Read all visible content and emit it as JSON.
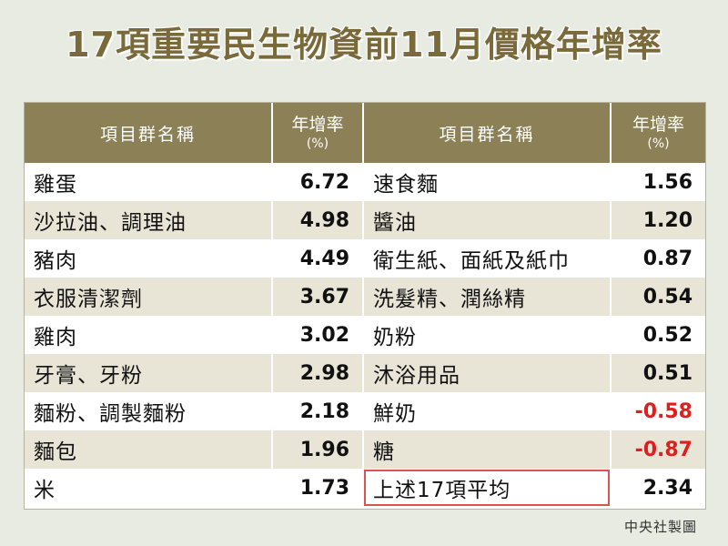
{
  "title": "17項重要民生物資前11月價格年增率",
  "table": {
    "header": {
      "name_label": "項目群名稱",
      "rate_label": "年增率",
      "rate_unit": "(%)"
    },
    "left": [
      {
        "name": "雞蛋",
        "rate": "6.72"
      },
      {
        "name": "沙拉油、調理油",
        "rate": "4.98"
      },
      {
        "name": "豬肉",
        "rate": "4.49"
      },
      {
        "name": "衣服清潔劑",
        "rate": "3.67"
      },
      {
        "name": "雞肉",
        "rate": "3.02"
      },
      {
        "name": "牙膏、牙粉",
        "rate": "2.98"
      },
      {
        "name": "麵粉、調製麵粉",
        "rate": "2.18"
      },
      {
        "name": "麵包",
        "rate": "1.96"
      },
      {
        "name": "米",
        "rate": "1.73"
      }
    ],
    "right": [
      {
        "name": "速食麵",
        "rate": "1.56"
      },
      {
        "name": "醬油",
        "rate": "1.20"
      },
      {
        "name": "衛生紙、面紙及紙巾",
        "rate": "0.87"
      },
      {
        "name": "洗髮精、潤絲精",
        "rate": "0.54"
      },
      {
        "name": "奶粉",
        "rate": "0.52"
      },
      {
        "name": "沐浴用品",
        "rate": "0.51"
      },
      {
        "name": "鮮奶",
        "rate": "-0.58"
      },
      {
        "name": "糖",
        "rate": "-0.87"
      },
      {
        "name": "上述17項平均",
        "rate": "2.34"
      }
    ]
  },
  "credit": "中央社製圖",
  "colors": {
    "header_bg": "#8c8057",
    "title": "#7a6a3a",
    "negative": "#e01e1e",
    "stripe": "#e8e4d6",
    "page_bg": "#e7ebe2"
  }
}
